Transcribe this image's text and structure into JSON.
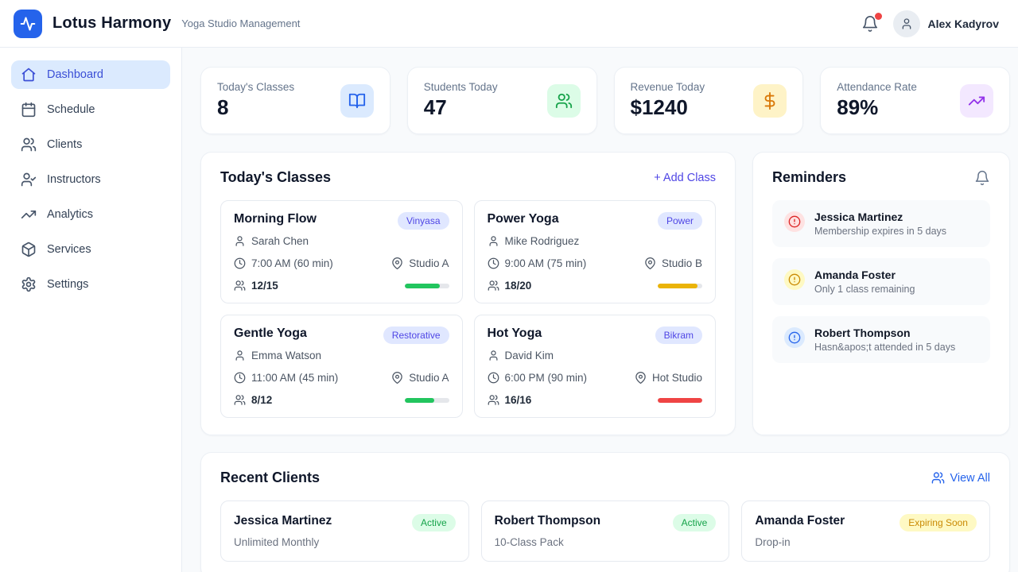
{
  "header": {
    "app_name": "Lotus Harmony",
    "app_subtitle": "Yoga Studio Management",
    "user_name": "Alex Kadyrov",
    "logo_color": "#2563eb",
    "notification_dot_color": "#ef4444"
  },
  "sidebar": {
    "items": [
      {
        "label": "Dashboard",
        "icon": "home-icon",
        "active": true
      },
      {
        "label": "Schedule",
        "icon": "calendar-icon",
        "active": false
      },
      {
        "label": "Clients",
        "icon": "users-icon",
        "active": false
      },
      {
        "label": "Instructors",
        "icon": "user-check-icon",
        "active": false
      },
      {
        "label": "Analytics",
        "icon": "trending-up-icon",
        "active": false
      },
      {
        "label": "Services",
        "icon": "package-icon",
        "active": false
      },
      {
        "label": "Settings",
        "icon": "gear-icon",
        "active": false
      }
    ],
    "active_bg": "#dbeafe",
    "active_color": "#3b4fd6"
  },
  "stats": [
    {
      "label": "Today's Classes",
      "value": "8",
      "icon": "book-open-icon",
      "icon_color": "#2563eb",
      "icon_bg": "#dbeafe"
    },
    {
      "label": "Students Today",
      "value": "47",
      "icon": "users-icon",
      "icon_color": "#16a34a",
      "icon_bg": "#dcfce7"
    },
    {
      "label": "Revenue Today",
      "value": "$1240",
      "icon": "dollar-icon",
      "icon_color": "#d97706",
      "icon_bg": "#fef3c7"
    },
    {
      "label": "Attendance Rate",
      "value": "89%",
      "icon": "trending-up-icon",
      "icon_color": "#9333ea",
      "icon_bg": "#f3e8ff"
    }
  ],
  "today_classes": {
    "title": "Today's Classes",
    "add_class_label": "+ Add Class",
    "add_class_color": "#4f46e5",
    "badge_bg": "#e0e7ff",
    "badge_color": "#4f46e5",
    "classes": [
      {
        "name": "Morning Flow",
        "style_badge": "Vinyasa",
        "instructor": "Sarah Chen",
        "time": "7:00 AM (60 min)",
        "studio": "Studio A",
        "enrolled": "12/15",
        "fill_pct": 80,
        "fill_color": "#22c55e"
      },
      {
        "name": "Power Yoga",
        "style_badge": "Power",
        "instructor": "Mike Rodriguez",
        "time": "9:00 AM (75 min)",
        "studio": "Studio B",
        "enrolled": "18/20",
        "fill_pct": 90,
        "fill_color": "#eab308"
      },
      {
        "name": "Gentle Yoga",
        "style_badge": "Restorative",
        "instructor": "Emma Watson",
        "time": "11:00 AM (45 min)",
        "studio": "Studio A",
        "enrolled": "8/12",
        "fill_pct": 67,
        "fill_color": "#22c55e"
      },
      {
        "name": "Hot Yoga",
        "style_badge": "Bikram",
        "instructor": "David Kim",
        "time": "6:00 PM (90 min)",
        "studio": "Hot Studio",
        "enrolled": "16/16",
        "fill_pct": 100,
        "fill_color": "#ef4444"
      }
    ]
  },
  "reminders": {
    "title": "Reminders",
    "items": [
      {
        "name": "Jessica Martinez",
        "note": "Membership expires in 5 days",
        "icon_color": "#dc2626",
        "icon_bg": "#fee2e2"
      },
      {
        "name": "Amanda Foster",
        "note": "Only 1 class remaining",
        "icon_color": "#ca8a04",
        "icon_bg": "#fef9c3"
      },
      {
        "name": "Robert Thompson",
        "note": "Hasn&apos;t attended in 5 days",
        "icon_color": "#2563eb",
        "icon_bg": "#dbeafe"
      }
    ]
  },
  "recent_clients": {
    "title": "Recent Clients",
    "view_all_label": "View All",
    "view_all_color": "#2563eb",
    "clients": [
      {
        "name": "Jessica Martinez",
        "plan": "Unlimited Monthly",
        "status": "Active",
        "status_bg": "#dcfce7",
        "status_color": "#16a34a"
      },
      {
        "name": "Robert Thompson",
        "plan": "10-Class Pack",
        "status": "Active",
        "status_bg": "#dcfce7",
        "status_color": "#16a34a"
      },
      {
        "name": "Amanda Foster",
        "plan": "Drop-in",
        "status": "Expiring Soon",
        "status_bg": "#fef9c3",
        "status_color": "#ca8a04"
      }
    ]
  }
}
